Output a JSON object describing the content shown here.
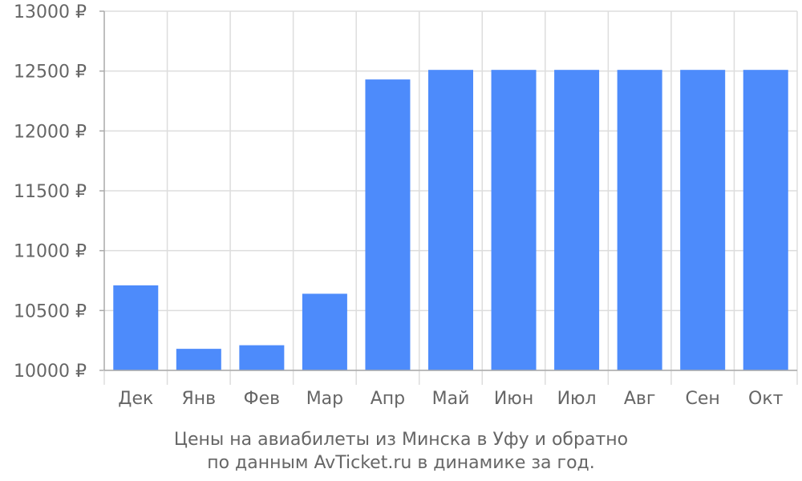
{
  "chart_data": {
    "type": "bar",
    "title_lines": [
      "Цены на авиабилеты из Минска в Уфу и обратно",
      "по данным AvTicket.ru в динамике за год."
    ],
    "categories": [
      "Дек",
      "Янв",
      "Фев",
      "Мар",
      "Апр",
      "Май",
      "Июн",
      "Июл",
      "Авг",
      "Сен",
      "Окт"
    ],
    "values": [
      10710,
      10180,
      10210,
      10640,
      12430,
      12510,
      12510,
      12510,
      12510,
      12510,
      12510
    ],
    "ylim": [
      10000,
      13000
    ],
    "yticks": [
      10000,
      10500,
      11000,
      11500,
      12000,
      12500,
      13000
    ],
    "ytick_labels": [
      "10000 ₽",
      "10500 ₽",
      "11000 ₽",
      "11500 ₽",
      "12000 ₽",
      "12500 ₽",
      "13000 ₽"
    ],
    "grid": true,
    "bar_color": "#4d8bfb",
    "grid_color": "#dddddd",
    "axis_color": "#aaaaaa",
    "text_color": "#666666"
  }
}
